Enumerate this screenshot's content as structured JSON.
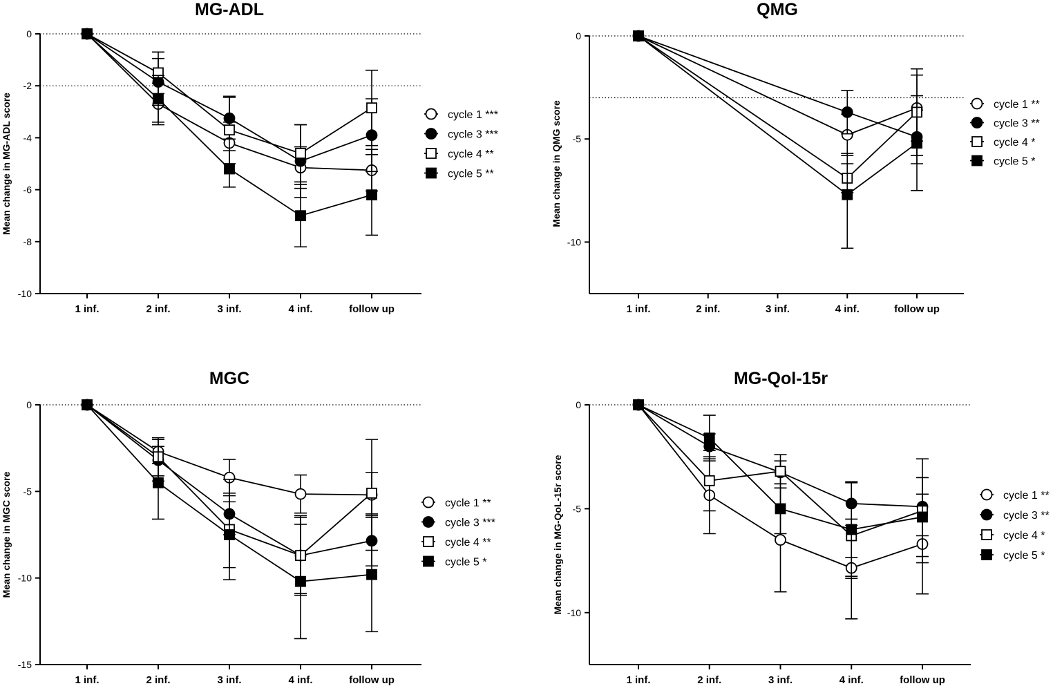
{
  "chart_data": [
    {
      "type": "line",
      "title": "MG-ADL",
      "xlabel": "",
      "ylabel": "Mean change in MG-ADL score",
      "categories": [
        "1 inf.",
        "2 inf.",
        "3 inf.",
        "4 inf.",
        "follow up"
      ],
      "ylim": [
        -10,
        0
      ],
      "yticks": [
        0,
        -2,
        -4,
        -6,
        -8,
        -10
      ],
      "reference_lines": [
        0,
        -2
      ],
      "series": [
        {
          "name": "cycle 1 ***",
          "marker": "open-circle",
          "x": [
            0,
            1,
            2,
            3,
            4
          ],
          "values": [
            0,
            -2.7,
            -4.2,
            -5.15,
            -5.25
          ],
          "err_high": [
            0,
            -1.9,
            -3.4,
            -4.35,
            -4.45
          ],
          "err_low": [
            0,
            -3.5,
            -5.0,
            -5.95,
            -6.05
          ]
        },
        {
          "name": "cycle 3 ***",
          "marker": "filled-circle",
          "x": [
            0,
            1,
            2,
            3,
            4
          ],
          "values": [
            0,
            -1.85,
            -3.25,
            -4.9,
            -3.9
          ],
          "err_high": [
            0,
            -0.95,
            -2.45,
            -3.5,
            -2.5
          ],
          "err_low": [
            0,
            -2.75,
            -4.05,
            -6.3,
            -5.3
          ]
        },
        {
          "name": "cycle 4 **",
          "marker": "open-square",
          "x": [
            0,
            1,
            2,
            3,
            4
          ],
          "values": [
            0,
            -1.5,
            -3.7,
            -4.6,
            -2.85
          ],
          "err_high": [
            0,
            -0.7,
            -2.4,
            -3.5,
            -1.4
          ],
          "err_low": [
            0,
            -2.3,
            -5.0,
            -5.7,
            -4.3
          ]
        },
        {
          "name": "cycle 5 **",
          "marker": "filled-square",
          "x": [
            0,
            1,
            2,
            3,
            4
          ],
          "values": [
            0,
            -2.5,
            -5.2,
            -7.0,
            -6.2
          ],
          "err_high": [
            0,
            -1.6,
            -4.5,
            -5.8,
            -4.65
          ],
          "err_low": [
            0,
            -3.4,
            -5.9,
            -8.2,
            -7.75
          ]
        }
      ]
    },
    {
      "type": "line",
      "title": "QMG",
      "xlabel": "",
      "ylabel": "Mean change in QMG score",
      "categories": [
        "1 inf.",
        "2 inf.",
        "3 inf.",
        "4 inf.",
        "follow up"
      ],
      "ylim": [
        -12.5,
        0
      ],
      "yticks": [
        0,
        -5,
        -10
      ],
      "reference_lines": [
        0,
        -3
      ],
      "series": [
        {
          "name": "cycle 1 **",
          "marker": "open-circle",
          "x": [
            0,
            3,
            4
          ],
          "values": [
            0,
            -4.8,
            -3.5
          ],
          "err_high": [
            0,
            -3.8,
            -1.9
          ],
          "err_low": [
            0,
            -5.8,
            -5.1
          ]
        },
        {
          "name": "cycle 3 **",
          "marker": "filled-circle",
          "x": [
            0,
            3,
            4
          ],
          "values": [
            0,
            -3.7,
            -4.9
          ],
          "err_high": [
            0,
            -2.65,
            -3.6
          ],
          "err_low": [
            0,
            -4.75,
            -6.2
          ]
        },
        {
          "name": "cycle 4 *",
          "marker": "open-square",
          "x": [
            0,
            3,
            4
          ],
          "values": [
            0,
            -6.9,
            -3.7
          ],
          "err_high": [
            0,
            -6.2,
            -1.6
          ],
          "err_low": [
            0,
            -7.6,
            -5.8
          ]
        },
        {
          "name": "cycle 5 *",
          "marker": "filled-square",
          "x": [
            0,
            3,
            4
          ],
          "values": [
            0,
            -7.7,
            -5.2
          ],
          "err_high": [
            0,
            -5.7,
            -2.9
          ],
          "err_low": [
            0,
            -10.3,
            -7.5
          ]
        }
      ]
    },
    {
      "type": "line",
      "title": "MGC",
      "xlabel": "",
      "ylabel": "Mean change in MGC score",
      "categories": [
        "1 inf.",
        "2 inf.",
        "3 inf.",
        "4 inf.",
        "follow up"
      ],
      "ylim": [
        -15,
        0
      ],
      "yticks": [
        0,
        -5,
        -10,
        -15
      ],
      "reference_lines": [
        0
      ],
      "series": [
        {
          "name": "cycle 1 **",
          "marker": "open-circle",
          "x": [
            0,
            1,
            2,
            3,
            4
          ],
          "values": [
            0,
            -2.7,
            -4.2,
            -5.15,
            -5.2
          ],
          "err_high": [
            0,
            -2.0,
            -3.15,
            -4.05,
            -2.0
          ],
          "err_low": [
            0,
            -3.4,
            -5.25,
            -6.25,
            -8.4
          ]
        },
        {
          "name": "cycle 3 ***",
          "marker": "filled-circle",
          "x": [
            0,
            1,
            2,
            3,
            4
          ],
          "values": [
            0,
            -3.2,
            -6.3,
            -8.7,
            -7.85
          ],
          "err_high": [
            0,
            -2.0,
            -5.1,
            -6.5,
            -6.4
          ],
          "err_low": [
            0,
            -4.4,
            -7.5,
            -10.9,
            -9.3
          ]
        },
        {
          "name": "cycle 4 **",
          "marker": "open-square",
          "x": [
            0,
            1,
            2,
            3,
            4
          ],
          "values": [
            0,
            -3.0,
            -7.2,
            -8.7,
            -5.1
          ],
          "err_high": [
            0,
            -1.9,
            -4.3,
            -6.4,
            -3.9
          ],
          "err_low": [
            0,
            -4.1,
            -10.1,
            -11.0,
            -6.3
          ]
        },
        {
          "name": "cycle 5 *",
          "marker": "filled-square",
          "x": [
            0,
            1,
            2,
            3,
            4
          ],
          "values": [
            0,
            -4.5,
            -7.5,
            -10.2,
            -9.8
          ],
          "err_high": [
            0,
            -2.4,
            -5.6,
            -6.9,
            -6.5
          ],
          "err_low": [
            0,
            -6.6,
            -9.4,
            -13.5,
            -13.1
          ]
        }
      ]
    },
    {
      "type": "line",
      "title": "MG-Qol-15r",
      "xlabel": "",
      "ylabel": "Mean change in MG-QoL-15r score",
      "categories": [
        "1 inf.",
        "2 inf.",
        "3 inf.",
        "4 inf.",
        "follow up"
      ],
      "ylim": [
        -12.5,
        0
      ],
      "yticks": [
        0,
        -5,
        -10
      ],
      "reference_lines": [
        0
      ],
      "series": [
        {
          "name": "cycle 1 **",
          "marker": "open-circle",
          "x": [
            0,
            1,
            2,
            3,
            4
          ],
          "values": [
            0,
            -4.35,
            -6.5,
            -7.85,
            -6.7
          ],
          "err_high": [
            0,
            -2.5,
            -4.0,
            -7.35,
            -4.3
          ],
          "err_low": [
            0,
            -6.2,
            -9.0,
            -8.35,
            -9.1
          ]
        },
        {
          "name": "cycle 3 **",
          "marker": "filled-circle",
          "x": [
            0,
            1,
            2,
            3,
            4
          ],
          "values": [
            0,
            -2.0,
            -3.25,
            -4.75,
            -4.9
          ],
          "err_high": [
            0,
            -1.4,
            -2.7,
            -3.7,
            -3.5
          ],
          "err_low": [
            0,
            -2.6,
            -3.8,
            -5.8,
            -6.3
          ]
        },
        {
          "name": "cycle 4 *",
          "marker": "open-square",
          "x": [
            0,
            1,
            2,
            3,
            4
          ],
          "values": [
            0,
            -3.65,
            -3.2,
            -6.3,
            -5.1
          ],
          "err_high": [
            0,
            -2.2,
            -2.4,
            -3.75,
            -2.6
          ],
          "err_low": [
            0,
            -5.1,
            -4.0,
            -8.25,
            -7.6
          ]
        },
        {
          "name": "cycle 5 *",
          "marker": "filled-square",
          "x": [
            0,
            1,
            2,
            3,
            4
          ],
          "values": [
            0,
            -1.6,
            -5.0,
            -6.0,
            -5.4
          ],
          "err_high": [
            0,
            -0.5,
            -3.8,
            -5.5,
            -3.5
          ],
          "err_low": [
            0,
            -2.7,
            -6.2,
            -10.3,
            -7.3
          ]
        }
      ]
    }
  ]
}
